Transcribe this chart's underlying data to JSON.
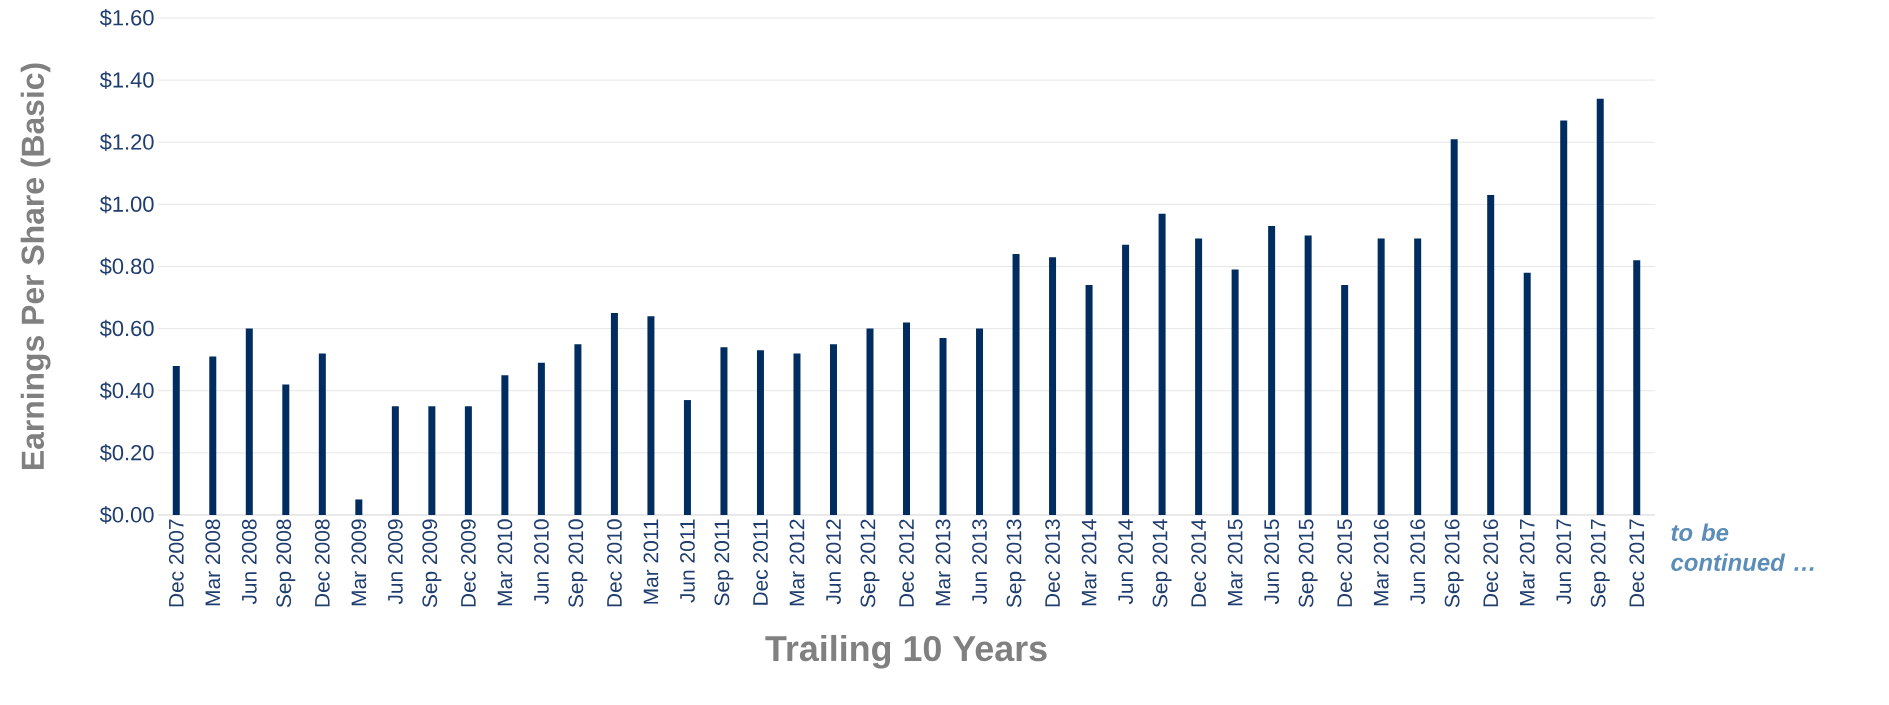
{
  "chart_data": {
    "type": "bar",
    "xlabel": "Trailing 10 Years",
    "ylabel": "Earnings Per Share (Basic)",
    "categories": [
      "Dec 2007",
      "Mar 2008",
      "Jun 2008",
      "Sep 2008",
      "Dec 2008",
      "Mar 2009",
      "Jun 2009",
      "Sep 2009",
      "Dec 2009",
      "Mar 2010",
      "Jun 2010",
      "Sep 2010",
      "Dec 2010",
      "Mar 2011",
      "Jun 2011",
      "Sep 2011",
      "Dec 2011",
      "Mar 2012",
      "Jun 2012",
      "Sep 2012",
      "Dec 2012",
      "Mar 2013",
      "Jun 2013",
      "Sep 2013",
      "Dec 2013",
      "Mar 2014",
      "Jun 2014",
      "Sep 2014",
      "Dec 2014",
      "Mar 2015",
      "Jun 2015",
      "Sep 2015",
      "Dec 2015",
      "Mar 2016",
      "Jun 2016",
      "Sep 2016",
      "Dec 2016",
      "Mar 2017",
      "Jun 2017",
      "Sep 2017",
      "Dec 2017"
    ],
    "values": [
      0.48,
      0.51,
      0.6,
      0.42,
      0.52,
      0.05,
      0.35,
      0.35,
      0.35,
      0.45,
      0.49,
      0.55,
      0.65,
      0.64,
      0.37,
      0.54,
      0.53,
      0.52,
      0.55,
      0.6,
      0.62,
      0.57,
      0.6,
      0.84,
      0.83,
      0.74,
      0.87,
      0.97,
      0.89,
      0.79,
      0.93,
      0.9,
      0.74,
      0.89,
      0.89,
      1.21,
      1.03,
      0.78,
      1.27,
      1.34,
      0.82
    ],
    "color": "#002c5f",
    "ylim": [
      0,
      1.6
    ],
    "yticks": [
      {
        "value": 0,
        "label": "$0.00"
      },
      {
        "value": 0.2,
        "label": "$0.20"
      },
      {
        "value": 0.4,
        "label": "$0.40"
      },
      {
        "value": 0.6,
        "label": "$0.60"
      },
      {
        "value": 0.8,
        "label": "$0.80"
      },
      {
        "value": 1.0,
        "label": "$1.00"
      },
      {
        "value": 1.2,
        "label": "$1.20"
      },
      {
        "value": 1.4,
        "label": "$1.40"
      },
      {
        "value": 1.6,
        "label": "$1.60"
      }
    ],
    "grid": "y",
    "annotations": [
      "to be continued …"
    ]
  }
}
